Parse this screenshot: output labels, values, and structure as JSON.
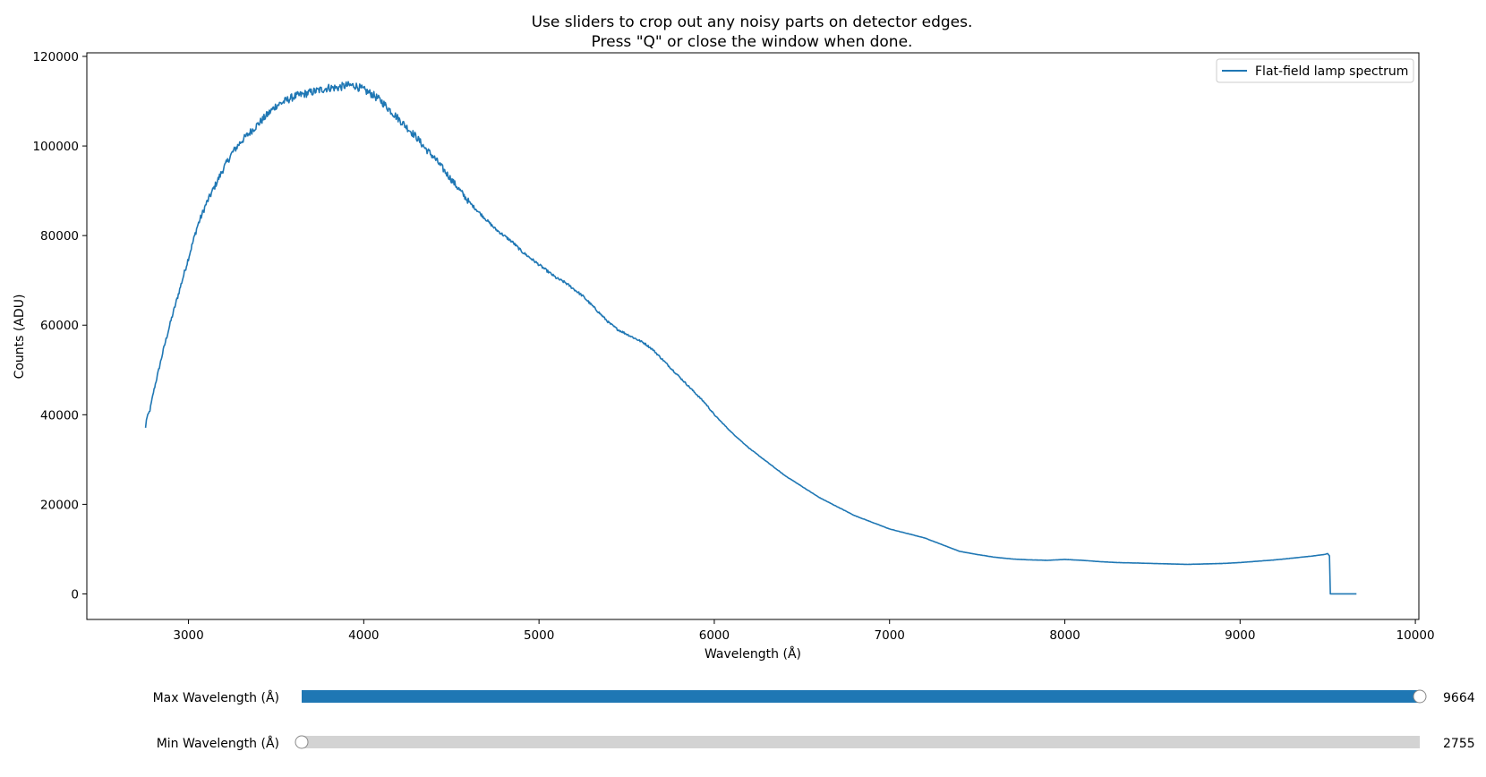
{
  "chart_data": {
    "type": "line",
    "title_lines": [
      "Use sliders to crop out any noisy parts on detector edges.",
      "Press \"Q\" or close the window when done."
    ],
    "xlabel": "Wavelength (Å)",
    "ylabel": "Counts (ADU)",
    "xlim": [
      2420,
      10020
    ],
    "ylim": [
      -5700,
      120800
    ],
    "xticks": [
      3000,
      4000,
      5000,
      6000,
      7000,
      8000,
      9000,
      10000
    ],
    "yticks": [
      0,
      20000,
      40000,
      60000,
      80000,
      100000,
      120000
    ],
    "legend_position": "upper right",
    "grid": false,
    "series": [
      {
        "name": "Flat-field lamp spectrum",
        "color": "#1f77b4",
        "points": [
          [
            2755,
            37000
          ],
          [
            2760,
            39000
          ],
          [
            2780,
            41000
          ],
          [
            2800,
            45000
          ],
          [
            2830,
            50000
          ],
          [
            2860,
            55000
          ],
          [
            2900,
            61000
          ],
          [
            2950,
            68000
          ],
          [
            3000,
            75000
          ],
          [
            3050,
            82000
          ],
          [
            3100,
            87000
          ],
          [
            3150,
            91000
          ],
          [
            3200,
            95000
          ],
          [
            3250,
            98500
          ],
          [
            3300,
            101000
          ],
          [
            3350,
            103000
          ],
          [
            3400,
            105000
          ],
          [
            3450,
            107000
          ],
          [
            3500,
            109000
          ],
          [
            3550,
            110000
          ],
          [
            3600,
            111000
          ],
          [
            3650,
            111500
          ],
          [
            3700,
            112000
          ],
          [
            3750,
            112500
          ],
          [
            3800,
            113000
          ],
          [
            3850,
            113000
          ],
          [
            3900,
            113500
          ],
          [
            3950,
            113500
          ],
          [
            4000,
            112500
          ],
          [
            4050,
            111500
          ],
          [
            4100,
            110000
          ],
          [
            4150,
            108000
          ],
          [
            4200,
            106000
          ],
          [
            4250,
            104000
          ],
          [
            4300,
            102000
          ],
          [
            4350,
            99500
          ],
          [
            4400,
            97500
          ],
          [
            4450,
            95000
          ],
          [
            4500,
            92500
          ],
          [
            4550,
            90000
          ],
          [
            4600,
            87500
          ],
          [
            4650,
            85500
          ],
          [
            4700,
            83500
          ],
          [
            4750,
            81500
          ],
          [
            4800,
            80000
          ],
          [
            4850,
            78500
          ],
          [
            4900,
            76500
          ],
          [
            4950,
            75000
          ],
          [
            5000,
            73500
          ],
          [
            5050,
            72000
          ],
          [
            5100,
            70500
          ],
          [
            5150,
            69500
          ],
          [
            5200,
            68000
          ],
          [
            5250,
            66500
          ],
          [
            5300,
            64500
          ],
          [
            5350,
            62500
          ],
          [
            5400,
            60500
          ],
          [
            5450,
            59000
          ],
          [
            5500,
            58000
          ],
          [
            5550,
            57000
          ],
          [
            5600,
            56000
          ],
          [
            5650,
            54500
          ],
          [
            5700,
            52500
          ],
          [
            5750,
            50500
          ],
          [
            5800,
            48500
          ],
          [
            5850,
            46500
          ],
          [
            5900,
            44500
          ],
          [
            5950,
            42500
          ],
          [
            6000,
            40000
          ],
          [
            6100,
            36000
          ],
          [
            6200,
            32500
          ],
          [
            6300,
            29500
          ],
          [
            6400,
            26500
          ],
          [
            6500,
            24000
          ],
          [
            6600,
            21500
          ],
          [
            6700,
            19500
          ],
          [
            6800,
            17500
          ],
          [
            6900,
            16000
          ],
          [
            7000,
            14500
          ],
          [
            7100,
            13500
          ],
          [
            7200,
            12500
          ],
          [
            7300,
            11000
          ],
          [
            7400,
            9500
          ],
          [
            7500,
            8800
          ],
          [
            7600,
            8200
          ],
          [
            7700,
            7800
          ],
          [
            7800,
            7600
          ],
          [
            7900,
            7500
          ],
          [
            8000,
            7700
          ],
          [
            8100,
            7500
          ],
          [
            8200,
            7200
          ],
          [
            8300,
            7000
          ],
          [
            8400,
            6900
          ],
          [
            8500,
            6800
          ],
          [
            8600,
            6700
          ],
          [
            8700,
            6600
          ],
          [
            8800,
            6700
          ],
          [
            8900,
            6800
          ],
          [
            9000,
            7000
          ],
          [
            9100,
            7300
          ],
          [
            9200,
            7600
          ],
          [
            9300,
            8000
          ],
          [
            9400,
            8400
          ],
          [
            9480,
            8800
          ],
          [
            9500,
            9000
          ],
          [
            9510,
            8500
          ],
          [
            9515,
            0
          ],
          [
            9550,
            0
          ],
          [
            9600,
            0
          ],
          [
            9664,
            0
          ]
        ]
      }
    ]
  },
  "sliders": [
    {
      "label": "Max Wavelength (Å)",
      "value_text": "9664",
      "value": 9664,
      "min": 2755,
      "max": 9664,
      "fill_color": "#1f77b4",
      "track_color": "#d3d3d3"
    },
    {
      "label": "Min Wavelength (Å)",
      "value_text": "2755",
      "value": 2755,
      "min": 2755,
      "max": 9664,
      "fill_color": "#1f77b4",
      "track_color": "#d3d3d3"
    }
  ]
}
